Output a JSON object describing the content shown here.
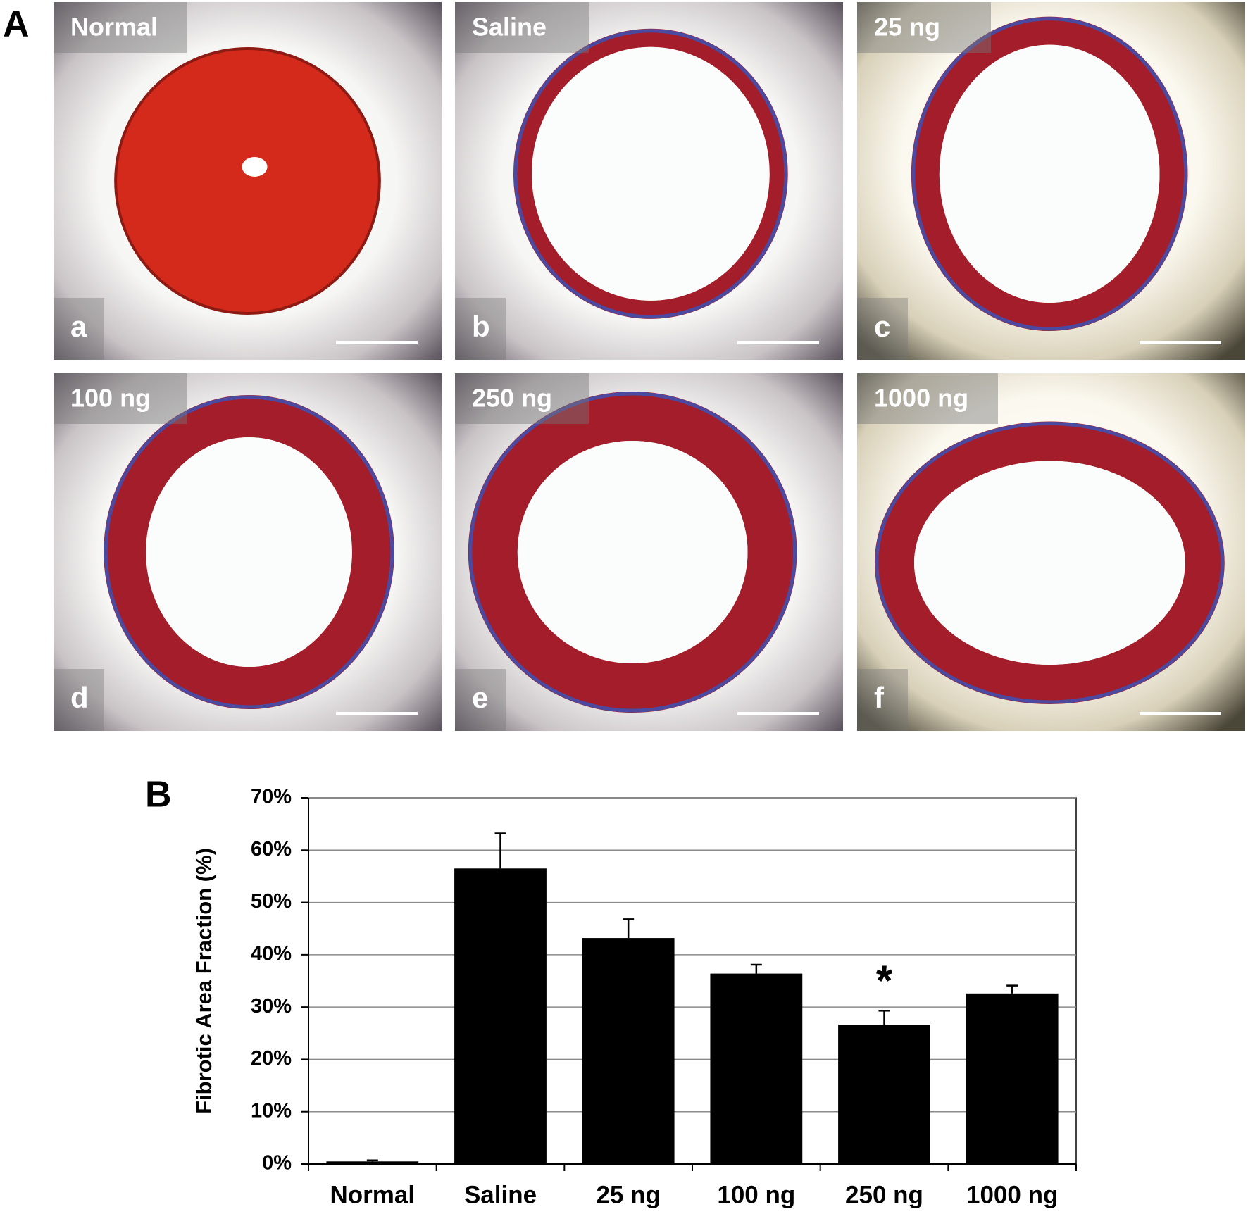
{
  "panel_a": {
    "label": "A",
    "images": [
      {
        "group": "Normal",
        "letter": "a"
      },
      {
        "group": "Saline",
        "letter": "b"
      },
      {
        "group": "25 ng",
        "letter": "c"
      },
      {
        "group": "100 ng",
        "letter": "d"
      },
      {
        "group": "250 ng",
        "letter": "e"
      },
      {
        "group": "1000 ng",
        "letter": "f"
      }
    ]
  },
  "chart_data": {
    "type": "bar",
    "panel_label": "B",
    "y_label": "Fibrotic Area Fraction (%)",
    "categories": [
      "Normal",
      "Saline",
      "25 ng",
      "100 ng",
      "250 ng",
      "1000 ng"
    ],
    "values": [
      0.5,
      56.5,
      43.2,
      36.4,
      26.6,
      32.6
    ],
    "errors": [
      0.2,
      6.7,
      3.6,
      1.7,
      2.7,
      1.5
    ],
    "color": "#000000",
    "ylim": [
      0,
      70
    ],
    "yticks": [
      {
        "value": 0,
        "label": "0%"
      },
      {
        "value": 10,
        "label": "10%"
      },
      {
        "value": 20,
        "label": "20%"
      },
      {
        "value": 30,
        "label": "30%"
      },
      {
        "value": 40,
        "label": "40%"
      },
      {
        "value": 50,
        "label": "50%"
      },
      {
        "value": 60,
        "label": "60%"
      },
      {
        "value": 70,
        "label": "70%"
      }
    ],
    "grid": true,
    "annotations": [
      {
        "text": "*",
        "x": "250 ng"
      }
    ]
  }
}
